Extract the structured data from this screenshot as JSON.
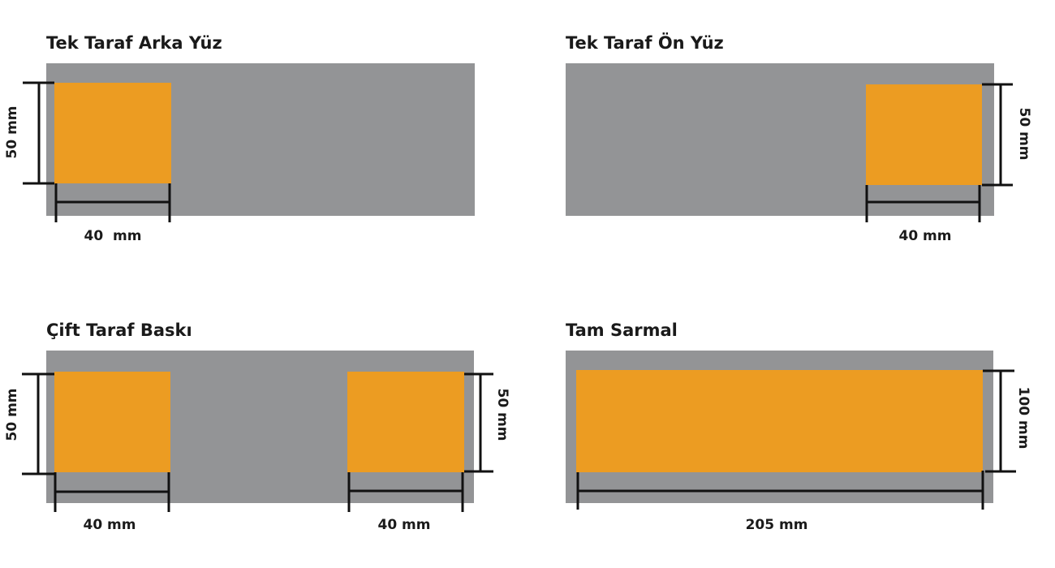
{
  "colors": {
    "background_strip": "#939496",
    "print_area": "#EC9C22",
    "dimension_lines": "#111111"
  },
  "panels": [
    {
      "title": "Tek Taraf Arka Yüz",
      "width_label": "40  mm",
      "height_label": "50 mm"
    },
    {
      "title": "Tek Taraf Ön Yüz",
      "width_label": "40 mm",
      "height_label": "50 mm"
    },
    {
      "title": "Çift Taraf Baskı",
      "width_label_left": "40 mm",
      "width_label_right": "40 mm",
      "height_label_left": "50 mm",
      "height_label_right": "50 mm"
    },
    {
      "title": "Tam Sarmal",
      "width_label": "205 mm",
      "height_label": "100 mm"
    }
  ]
}
